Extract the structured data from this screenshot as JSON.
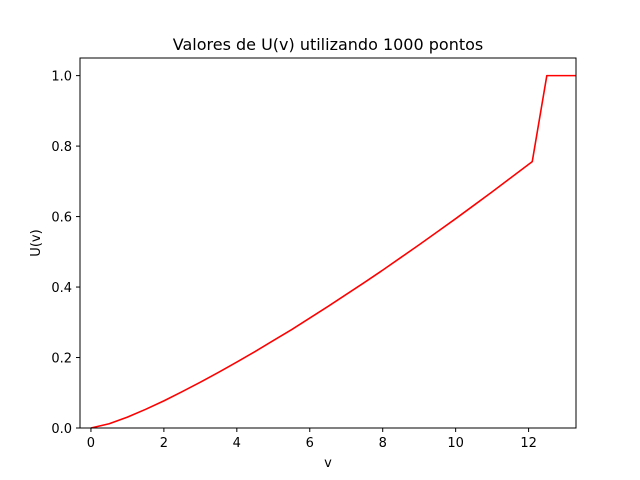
{
  "chart_data": {
    "type": "line",
    "title": "Valores de U(v) utilizando 1000 pontos",
    "xlabel": "v",
    "ylabel": "U(v)",
    "xlim": [
      -0.3,
      13.3
    ],
    "ylim": [
      0.0,
      1.05
    ],
    "xticks": [
      0,
      2,
      4,
      6,
      8,
      10,
      12
    ],
    "xtick_labels": [
      "0",
      "2",
      "4",
      "6",
      "8",
      "10",
      "12"
    ],
    "yticks": [
      0.0,
      0.2,
      0.4,
      0.6,
      0.8,
      1.0
    ],
    "ytick_labels": [
      "0.0",
      "0.2",
      "0.4",
      "0.6",
      "0.8",
      "1.0"
    ],
    "grid": false,
    "series": [
      {
        "color": "#ff0000",
        "x": [
          0,
          0.5,
          1,
          1.5,
          2,
          2.5,
          3,
          3.5,
          4,
          4.5,
          5,
          5.5,
          6,
          6.5,
          7,
          7.5,
          8,
          8.5,
          9,
          9.5,
          10,
          10.5,
          11,
          11.5,
          12,
          12.1,
          12.5,
          13,
          13.3
        ],
        "y": [
          0.0,
          0.012,
          0.031,
          0.053,
          0.077,
          0.103,
          0.13,
          0.158,
          0.187,
          0.217,
          0.248,
          0.279,
          0.312,
          0.345,
          0.379,
          0.413,
          0.448,
          0.484,
          0.52,
          0.557,
          0.594,
          0.632,
          0.67,
          0.709,
          0.748,
          0.756,
          1.0,
          1.0,
          1.0
        ]
      }
    ]
  }
}
